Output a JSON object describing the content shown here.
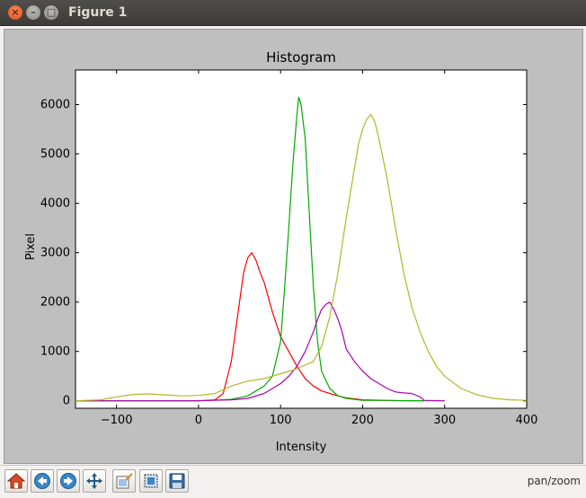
{
  "window": {
    "title": "Figure 1",
    "close_glyph": "×",
    "minimize_glyph": "–",
    "maximize_glyph": "□"
  },
  "toolbar": {
    "status": "pan/zoom",
    "buttons": [
      {
        "name": "home-icon"
      },
      {
        "name": "back-icon"
      },
      {
        "name": "forward-icon"
      },
      {
        "name": "pan-icon"
      },
      {
        "name": "configure-subplots-icon"
      },
      {
        "name": "zoom-rect-icon"
      },
      {
        "name": "save-icon"
      }
    ]
  },
  "chart_data": {
    "type": "line",
    "title": "Histogram",
    "xlabel": "Intensity",
    "ylabel": "Pixel",
    "xlim": [
      -150,
      400
    ],
    "ylim": [
      -150,
      6700
    ],
    "xticks": [
      -100,
      0,
      100,
      200,
      300,
      400
    ],
    "yticks": [
      0,
      1000,
      2000,
      3000,
      4000,
      5000,
      6000
    ],
    "grid": false,
    "series": [
      {
        "color": "#ff0000",
        "x": [
          -150,
          0,
          20,
          30,
          40,
          50,
          55,
          60,
          65,
          70,
          75,
          80,
          90,
          100,
          110,
          120,
          130,
          140,
          150,
          160,
          170,
          180,
          200,
          250,
          275
        ],
        "y": [
          0,
          0,
          20,
          150,
          800,
          2000,
          2600,
          2900,
          3000,
          2850,
          2600,
          2400,
          1800,
          1300,
          1000,
          700,
          450,
          300,
          200,
          150,
          100,
          60,
          20,
          0,
          0
        ]
      },
      {
        "color": "#00aa00",
        "x": [
          -150,
          0,
          40,
          60,
          80,
          90,
          100,
          105,
          110,
          115,
          120,
          122,
          125,
          130,
          135,
          140,
          145,
          150,
          160,
          170,
          180,
          200,
          300
        ],
        "y": [
          0,
          0,
          30,
          100,
          300,
          500,
          1200,
          2300,
          3500,
          4800,
          5800,
          6150,
          6000,
          5300,
          3800,
          2300,
          1200,
          600,
          250,
          100,
          50,
          10,
          0
        ]
      },
      {
        "color": "#b000b0",
        "x": [
          -150,
          0,
          40,
          60,
          80,
          100,
          110,
          120,
          130,
          140,
          145,
          150,
          155,
          160,
          165,
          170,
          175,
          180,
          190,
          200,
          210,
          220,
          230,
          240,
          250,
          260,
          270,
          275,
          300
        ],
        "y": [
          0,
          0,
          20,
          50,
          150,
          350,
          500,
          700,
          1000,
          1400,
          1650,
          1850,
          1950,
          2000,
          1850,
          1650,
          1400,
          1050,
          800,
          600,
          450,
          350,
          250,
          180,
          160,
          150,
          80,
          10,
          0
        ]
      },
      {
        "color": "#b5b52a",
        "x": [
          -150,
          -120,
          -100,
          -80,
          -60,
          -40,
          -20,
          0,
          20,
          40,
          60,
          80,
          100,
          120,
          140,
          150,
          160,
          170,
          180,
          190,
          195,
          200,
          205,
          210,
          215,
          220,
          230,
          240,
          250,
          260,
          270,
          280,
          290,
          300,
          320,
          340,
          360,
          380,
          400
        ],
        "y": [
          0,
          20,
          80,
          130,
          140,
          120,
          100,
          110,
          150,
          300,
          400,
          450,
          550,
          650,
          800,
          1100,
          1700,
          2600,
          3700,
          4700,
          5200,
          5500,
          5700,
          5800,
          5650,
          5300,
          4500,
          3500,
          2600,
          1900,
          1400,
          1000,
          700,
          500,
          250,
          120,
          50,
          20,
          10
        ]
      }
    ]
  }
}
